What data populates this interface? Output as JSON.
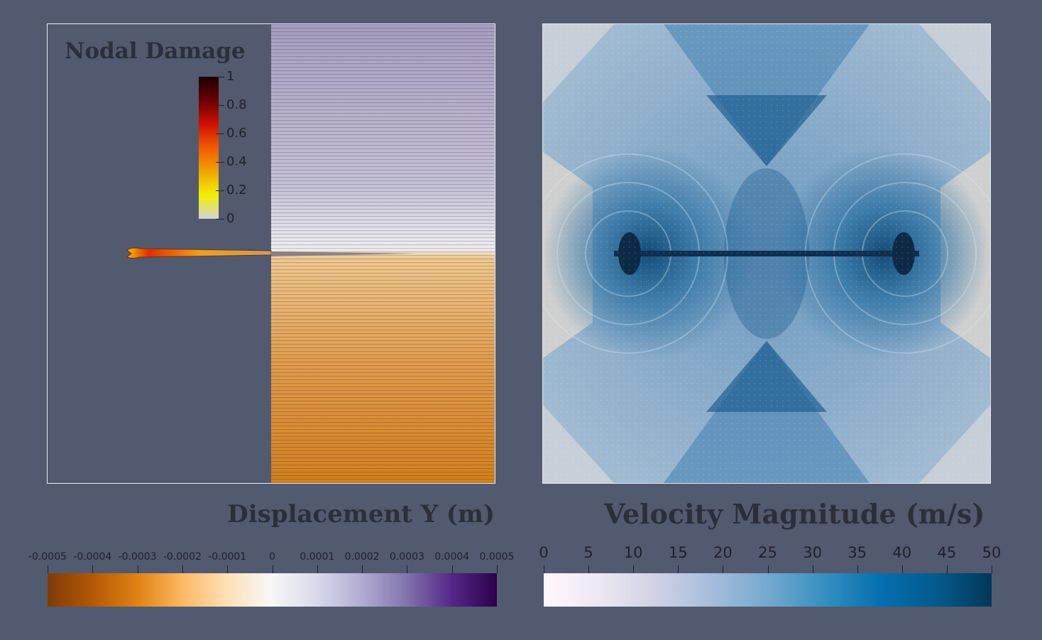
{
  "left_panel": {
    "overlay_title": "Nodal Damage",
    "damage_colorbar": {
      "ticks": [
        "1",
        "0.8",
        "0.6",
        "0.4",
        "0.2",
        "0"
      ],
      "colors": [
        "#1a0000",
        "#6b0000",
        "#d10f00",
        "#f05a00",
        "#f2a300",
        "#f0f000",
        "#d4d4d4"
      ]
    },
    "displacement_colors": {
      "top": "#9d93bb",
      "mid": "#f0eef4",
      "bottom": "#d8862b"
    }
  },
  "displacement_legend": {
    "title": "Displacement Y (m)",
    "ticks": [
      "-0.0005",
      "-0.0004",
      "-0.0003",
      "-0.0002",
      "-0.0001",
      "0",
      "0.0001",
      "0.0002",
      "0.0003",
      "0.0004",
      "0.0005"
    ],
    "colors": [
      "#7f3b08",
      "#b35806",
      "#e08214",
      "#fdb863",
      "#fee0b6",
      "#f7f7f7",
      "#d8daeb",
      "#b2abd2",
      "#8073ac",
      "#542788",
      "#2d004b"
    ]
  },
  "velocity_legend": {
    "title": "Velocity Magnitude (m/s)",
    "ticks": [
      "0",
      "5",
      "10",
      "15",
      "20",
      "25",
      "30",
      "35",
      "40",
      "45",
      "50"
    ],
    "colors": [
      "#fff7fb",
      "#ece7f2",
      "#d0d1e6",
      "#a6bddb",
      "#74a9cf",
      "#3690c0",
      "#0570b0",
      "#045a8d",
      "#023858"
    ]
  },
  "right_panel": {
    "colors": {
      "light": "#d9d6d2",
      "mid": "#7fa6c5",
      "dark": "#1d5d8e"
    }
  }
}
